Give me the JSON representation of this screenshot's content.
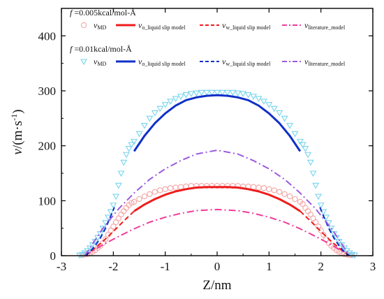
{
  "chart_data": {
    "type": "scatter",
    "xlabel": "Z/nm",
    "ylabel_main": "v/(m·s",
    "ylabel_sup": "-1",
    "ylabel_tail": ")",
    "xlim": [
      -3,
      3
    ],
    "ylim": [
      0,
      450
    ],
    "xticks": [
      -3,
      -2,
      -1,
      0,
      1,
      2,
      3
    ],
    "yticks": [
      0,
      100,
      200,
      300,
      400
    ],
    "grid": false,
    "legend_position": "top-left",
    "groups": [
      {
        "header_f": "f",
        "header_rest": " =0.005kcal/mol-Å",
        "entries": [
          {
            "main": "v",
            "sub": "MD",
            "color": "#f4a6a6",
            "style": "circle"
          },
          {
            "main": "v",
            "sub": "o_liquid slip model",
            "color": "#ee1c1c",
            "style": "solid"
          },
          {
            "main": "v",
            "sub": "w_liquid slip model",
            "color": "#ee1c1c",
            "style": "dash"
          },
          {
            "main": "v",
            "sub": "literature_model",
            "color": "#ee3c9c",
            "style": "dashdot"
          }
        ]
      },
      {
        "header_f": "f",
        "header_rest": " =0.01kcal/mol-Å",
        "entries": [
          {
            "main": "v",
            "sub": "MD",
            "color": "#76d4ee",
            "style": "triangle"
          },
          {
            "main": "v",
            "sub": "o_liquid slip model",
            "color": "#1030c8",
            "style": "solid"
          },
          {
            "main": "v",
            "sub": "w_liquid slip model",
            "color": "#1030c8",
            "style": "dash"
          },
          {
            "main": "v",
            "sub": "literature_model",
            "color": "#9a5ae0",
            "style": "dashdot"
          }
        ]
      }
    ],
    "series": [
      {
        "kind": "scatter",
        "marker": "circle",
        "color": "#f4a6a6",
        "x": [
          -2.6,
          -2.55,
          -2.5,
          -2.45,
          -2.4,
          -2.35,
          -2.3,
          -2.25,
          -2.2,
          -2.15,
          -2.1,
          -2.05,
          -2.0,
          -1.95,
          -1.9,
          -1.85,
          -1.8,
          -1.75,
          -1.7,
          -1.65,
          -1.6,
          -1.5,
          -1.4,
          -1.3,
          -1.2,
          -1.1,
          -1.0,
          -0.9,
          -0.8,
          -0.7,
          -0.6,
          -0.5,
          -0.4,
          -0.3,
          -0.2,
          -0.1,
          0.0,
          0.1,
          0.2,
          0.3,
          0.4,
          0.5,
          0.6,
          0.7,
          0.8,
          0.9,
          1.0,
          1.1,
          1.2,
          1.3,
          1.4,
          1.5,
          1.6,
          1.65,
          1.7,
          1.75,
          1.8,
          1.85,
          1.9,
          1.95,
          2.0,
          2.05,
          2.1,
          2.15,
          2.2,
          2.25,
          2.3,
          2.35,
          2.4,
          2.45,
          2.5,
          2.55,
          2.6
        ],
        "y": [
          1,
          2,
          3,
          5,
          7,
          10,
          14,
          18,
          23,
          30,
          38,
          46,
          53,
          61,
          68,
          75,
          81,
          87,
          92,
          96,
          98,
          103,
          108,
          112,
          116,
          119,
          121,
          123,
          124,
          125,
          126,
          127,
          127,
          127,
          127,
          127,
          127,
          127,
          127,
          127,
          127,
          126,
          126,
          125,
          124,
          123,
          121,
          119,
          116,
          112,
          108,
          103,
          98,
          94,
          87,
          81,
          75,
          68,
          61,
          53,
          46,
          38,
          30,
          23,
          18,
          14,
          10,
          7,
          5,
          3,
          2,
          1,
          1
        ]
      },
      {
        "kind": "scatter",
        "marker": "triangle",
        "color": "#76d4ee",
        "x": [
          -2.65,
          -2.6,
          -2.55,
          -2.5,
          -2.45,
          -2.4,
          -2.35,
          -2.3,
          -2.25,
          -2.2,
          -2.15,
          -2.1,
          -2.05,
          -2.0,
          -1.95,
          -1.9,
          -1.85,
          -1.8,
          -1.75,
          -1.7,
          -1.65,
          -1.6,
          -1.5,
          -1.4,
          -1.3,
          -1.2,
          -1.1,
          -1.0,
          -0.9,
          -0.8,
          -0.7,
          -0.6,
          -0.5,
          -0.4,
          -0.3,
          -0.2,
          -0.1,
          0.0,
          0.1,
          0.2,
          0.3,
          0.4,
          0.5,
          0.6,
          0.7,
          0.8,
          0.9,
          1.0,
          1.1,
          1.2,
          1.3,
          1.4,
          1.5,
          1.6,
          1.65,
          1.7,
          1.75,
          1.8,
          1.85,
          1.9,
          1.95,
          2.0,
          2.05,
          2.1,
          2.15,
          2.2,
          2.25,
          2.3,
          2.35,
          2.4,
          2.45,
          2.5,
          2.55,
          2.6,
          2.65
        ],
        "y": [
          1,
          2,
          5,
          9,
          14,
          20,
          26,
          33,
          40,
          50,
          60,
          70,
          80,
          92,
          108,
          128,
          150,
          170,
          184,
          195,
          202,
          208,
          222,
          237,
          250,
          260,
          268,
          275,
          281,
          286,
          290,
          293,
          295,
          296,
          297,
          297,
          297,
          297,
          297,
          297,
          297,
          296,
          295,
          293,
          290,
          286,
          281,
          275,
          268,
          260,
          250,
          237,
          222,
          208,
          202,
          195,
          184,
          170,
          150,
          128,
          108,
          92,
          80,
          70,
          60,
          50,
          40,
          33,
          26,
          20,
          14,
          9,
          5,
          2,
          1
        ]
      },
      {
        "kind": "line",
        "style": "solid",
        "color": "#ee1c1c",
        "width": 3,
        "x": [
          -1.6,
          -1.4,
          -1.2,
          -1.0,
          -0.8,
          -0.6,
          -0.4,
          -0.2,
          0.0,
          0.2,
          0.4,
          0.6,
          0.8,
          1.0,
          1.2,
          1.4,
          1.6
        ],
        "y": [
          81,
          93,
          103,
          111,
          117,
          121,
          124,
          125,
          125,
          125,
          124,
          121,
          117,
          111,
          103,
          93,
          81
        ]
      },
      {
        "kind": "line",
        "style": "dash",
        "color": "#ee1c1c",
        "width": 2,
        "x": [
          -2.55,
          -2.4,
          -2.2,
          -2.0,
          -1.8,
          -1.6
        ],
        "y": [
          0,
          10,
          26,
          44,
          63,
          81
        ]
      },
      {
        "kind": "line",
        "style": "dash",
        "color": "#ee1c1c",
        "width": 2,
        "x": [
          1.6,
          1.8,
          2.0,
          2.2,
          2.4,
          2.55
        ],
        "y": [
          81,
          63,
          44,
          26,
          10,
          0
        ]
      },
      {
        "kind": "line",
        "style": "dashdot",
        "color": "#ee3c9c",
        "width": 2,
        "x": [
          -2.55,
          -2.2,
          -1.9,
          -1.6,
          -1.3,
          -1.0,
          -0.7,
          -0.4,
          0.0,
          0.4,
          0.7,
          1.0,
          1.3,
          1.6,
          1.9,
          2.2,
          2.55
        ],
        "y": [
          0,
          20,
          35,
          49,
          61,
          70,
          77,
          82,
          84,
          82,
          77,
          70,
          61,
          49,
          35,
          20,
          0
        ]
      },
      {
        "kind": "line",
        "style": "solid",
        "color": "#1030c8",
        "width": 3,
        "x": [
          -1.6,
          -1.4,
          -1.2,
          -1.0,
          -0.8,
          -0.6,
          -0.4,
          -0.2,
          0.0,
          0.2,
          0.4,
          0.6,
          0.8,
          1.0,
          1.2,
          1.4,
          1.6
        ],
        "y": [
          190,
          218,
          241,
          259,
          273,
          283,
          288,
          291,
          292,
          291,
          288,
          283,
          273,
          259,
          241,
          218,
          190
        ]
      },
      {
        "kind": "line",
        "style": "dash",
        "color": "#1030c8",
        "width": 2,
        "x": [
          -2.55,
          -2.45,
          -2.35,
          -2.25,
          -2.15,
          -2.05,
          -1.98
        ],
        "y": [
          0,
          7,
          18,
          32,
          50,
          72,
          88
        ]
      },
      {
        "kind": "line",
        "style": "dash",
        "color": "#1030c8",
        "width": 2,
        "x": [
          1.98,
          2.05,
          2.15,
          2.25,
          2.35,
          2.45,
          2.55
        ],
        "y": [
          88,
          72,
          50,
          32,
          18,
          7,
          0
        ]
      },
      {
        "kind": "line",
        "style": "dashdot",
        "color": "#9a5ae0",
        "width": 2,
        "x": [
          -2.55,
          -2.2,
          -1.9,
          -1.6,
          -1.3,
          -1.0,
          -0.7,
          -0.4,
          0.0,
          0.4,
          0.7,
          1.0,
          1.3,
          1.6,
          1.9,
          2.2,
          2.55
        ],
        "y": [
          0,
          50,
          85,
          114,
          139,
          158,
          173,
          185,
          192,
          185,
          173,
          158,
          139,
          114,
          85,
          50,
          0
        ]
      }
    ]
  }
}
